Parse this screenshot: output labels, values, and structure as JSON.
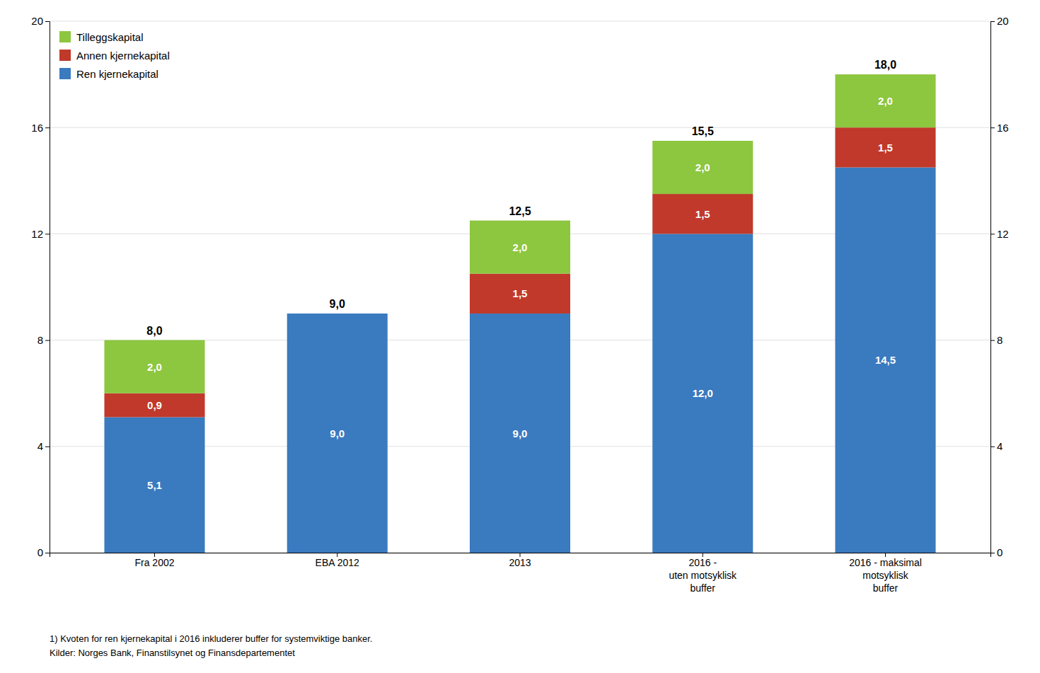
{
  "chart_data": {
    "type": "bar",
    "stacked": true,
    "categories": [
      "Fra 2002",
      "EBA 2012",
      "2013",
      "2016 -\nuten motsyklisk\nbuffer",
      "2016 - maksimal\nmotsyklisk\nbuffer"
    ],
    "series": [
      {
        "name": "Ren kjernekapital",
        "color": "#3a7abf",
        "values": [
          5.1,
          9.0,
          9.0,
          12.0,
          14.5
        ],
        "value_labels": [
          "5,1",
          "9,0",
          "9,0",
          "12,0",
          "14,5"
        ]
      },
      {
        "name": "Annen kjernekapital",
        "color": "#c0392b",
        "values": [
          0.9,
          0.0,
          1.5,
          1.5,
          1.5
        ],
        "value_labels": [
          "0,9",
          null,
          "1,5",
          "1,5",
          "1,5"
        ]
      },
      {
        "name": "Tilleggskapital",
        "color": "#8dc63f",
        "values": [
          2.0,
          0.0,
          2.0,
          2.0,
          2.0
        ],
        "value_labels": [
          "2,0",
          null,
          "2,0",
          "2,0",
          "2,0"
        ]
      }
    ],
    "totals": [
      8.0,
      9.0,
      12.5,
      15.5,
      18.0
    ],
    "total_labels": [
      "8,0",
      "9,0",
      "12,5",
      "15,5",
      "18,0"
    ],
    "data_labels": true,
    "ylim": [
      0,
      20
    ],
    "yticks": [
      0,
      4,
      8,
      12,
      16,
      20
    ],
    "y2lim": [
      0,
      20
    ],
    "y2ticks": [
      0,
      4,
      8,
      12,
      16,
      20
    ],
    "grid": true,
    "legend": "upper left",
    "annotations": [
      "1) Kvoten for ren kjernekapital i 2016 inkluderer buffer for systemviktige banker.",
      "Kilder: Norges Bank, Finanstilsynet og Finansdepartementet"
    ]
  }
}
